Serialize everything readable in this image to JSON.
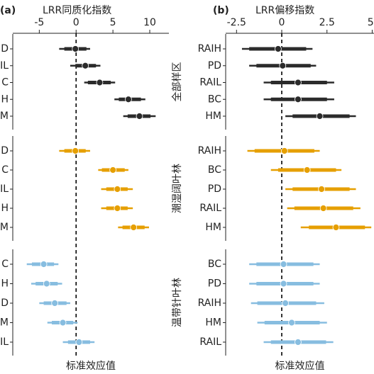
{
  "chart_data": [
    {
      "type": "forest",
      "panel": "(a)",
      "title": "LRR同质化指数",
      "xlabel": "标准效应值",
      "xlim": [
        -8.6,
        12.6
      ],
      "xticks": [
        -5,
        0,
        5,
        10
      ],
      "groups": [
        {
          "color": "#2b2b2b",
          "categories": [
            "D",
            "IL",
            "C",
            "H",
            "M"
          ],
          "values": [
            -0.1,
            1.25,
            3.2,
            7.1,
            8.6
          ],
          "low": [
            -2.3,
            -0.8,
            1.1,
            5.2,
            6.4
          ],
          "high": [
            1.9,
            3.3,
            5.3,
            9.4,
            10.8
          ],
          "inner_low": [
            -1.6,
            -0.1,
            1.6,
            5.8,
            7.0
          ],
          "inner_high": [
            1.4,
            2.7,
            4.7,
            8.8,
            10.1
          ]
        },
        {
          "color": "#e69f00",
          "categories": [
            "D",
            "C",
            "IL",
            "H",
            "M"
          ],
          "values": [
            -0.1,
            5.0,
            5.6,
            5.6,
            7.8
          ],
          "low": [
            -2.3,
            3.0,
            3.4,
            3.4,
            5.7
          ],
          "high": [
            1.9,
            7.1,
            7.7,
            7.7,
            9.9
          ],
          "inner_low": [
            -1.6,
            3.5,
            4.1,
            4.1,
            6.3
          ],
          "inner_high": [
            1.3,
            6.6,
            7.0,
            7.0,
            9.3
          ]
        },
        {
          "color": "#87bde0",
          "categories": [
            "C",
            "H",
            "D",
            "M",
            "IL"
          ],
          "values": [
            -4.4,
            -4.0,
            -2.9,
            -1.8,
            0.4
          ],
          "low": [
            -6.7,
            -6.1,
            -5.0,
            -3.9,
            -1.8
          ],
          "high": [
            -2.4,
            -1.9,
            -0.8,
            0.2,
            2.5
          ],
          "inner_low": [
            -6.0,
            -5.5,
            -4.4,
            -3.3,
            -1.1
          ],
          "inner_high": [
            -3.0,
            -2.5,
            -1.3,
            -0.4,
            1.9
          ]
        }
      ]
    },
    {
      "type": "forest",
      "panel": "(b)",
      "title": "LRR偏移指数",
      "xlabel": "标准效应值",
      "xlim": [
        -3.1,
        5.1
      ],
      "xticks": [
        -2.5,
        0,
        2.5,
        {
          "value": 5,
          "label": "5."
        }
      ],
      "groups": [
        {
          "name": "全部样区",
          "color": "#2b2b2b",
          "categories": [
            "RAIH",
            "PD",
            "RAIL",
            "BC",
            "HM"
          ],
          "values": [
            -0.2,
            0.05,
            0.9,
            0.9,
            2.1
          ],
          "low": [
            -2.2,
            -1.8,
            -1.0,
            -1.0,
            0.2
          ],
          "high": [
            1.7,
            1.9,
            2.9,
            2.9,
            4.1
          ],
          "inner_low": [
            -1.8,
            -1.4,
            -0.6,
            -0.6,
            0.6
          ],
          "inner_high": [
            1.35,
            1.6,
            2.5,
            2.5,
            3.75
          ]
        },
        {
          "name": "潮湿阔叶林",
          "color": "#e69f00",
          "categories": [
            "RAIH",
            "BC",
            "PD",
            "RAIL",
            "HM"
          ],
          "values": [
            0.15,
            1.4,
            2.2,
            2.3,
            3.0
          ],
          "low": [
            -1.9,
            -0.6,
            0.2,
            0.3,
            1.05
          ],
          "high": [
            2.1,
            3.3,
            4.1,
            4.35,
            4.95
          ],
          "inner_low": [
            -1.5,
            -0.2,
            0.6,
            0.7,
            1.5
          ],
          "inner_high": [
            1.8,
            3.0,
            3.75,
            3.95,
            4.6
          ]
        },
        {
          "name": "温带针叶林",
          "color": "#87bde0",
          "categories": [
            "BC",
            "PD",
            "RAIH",
            "HM",
            "RAIL"
          ],
          "values": [
            0.1,
            0.1,
            0.2,
            0.55,
            0.9
          ],
          "low": [
            -1.8,
            -1.8,
            -1.7,
            -1.35,
            -1.0
          ],
          "high": [
            2.1,
            2.1,
            2.35,
            2.5,
            2.85
          ],
          "inner_low": [
            -1.4,
            -1.4,
            -1.35,
            -0.95,
            -0.6
          ],
          "inner_high": [
            1.75,
            1.75,
            1.9,
            2.1,
            2.45
          ]
        }
      ]
    }
  ]
}
